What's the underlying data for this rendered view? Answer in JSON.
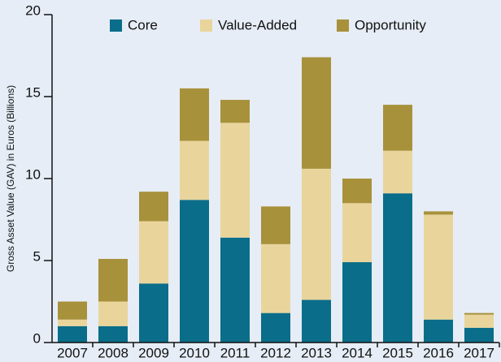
{
  "chart_data": {
    "type": "bar",
    "stacked": true,
    "y_label": "Gross Asset Value (GAV) in Euros (Billions)",
    "categories": [
      "2007",
      "2008",
      "2009",
      "2010",
      "2011",
      "2012",
      "2013",
      "2014",
      "2015",
      "2016",
      "2017"
    ],
    "series": [
      {
        "name": "Core",
        "color": "#0a6d89",
        "values": [
          1.0,
          1.0,
          3.6,
          8.7,
          6.4,
          1.8,
          2.6,
          4.9,
          9.1,
          1.4,
          0.9
        ]
      },
      {
        "name": "Value-Added",
        "color": "#e9d59c",
        "values": [
          0.4,
          1.5,
          3.8,
          3.6,
          7.0,
          4.2,
          8.0,
          3.6,
          2.6,
          6.4,
          0.8
        ]
      },
      {
        "name": "Opportunity",
        "color": "#a8913b",
        "values": [
          1.1,
          2.6,
          1.8,
          3.2,
          1.4,
          2.3,
          6.8,
          1.5,
          2.8,
          0.2,
          0.1
        ]
      }
    ],
    "ylim": [
      0,
      20
    ],
    "yticks": [
      0,
      5,
      10,
      15,
      20
    ],
    "legend": "top"
  }
}
